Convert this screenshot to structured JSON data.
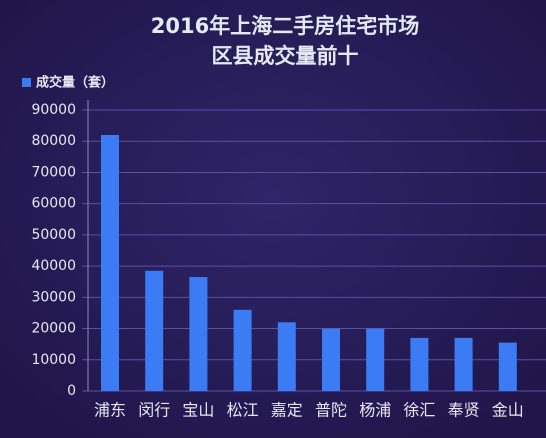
{
  "chart_data": {
    "type": "bar",
    "title": "2016年上海二手房住宅市场",
    "subtitle": "区县成交量前十",
    "categories": [
      "浦东",
      "闵行",
      "宝山",
      "松江",
      "嘉定",
      "普陀",
      "杨浦",
      "徐汇",
      "奉贤",
      "金山"
    ],
    "series": [
      {
        "name": "成交量（套）",
        "color": "#3b7cf5",
        "values": [
          82000,
          38500,
          36500,
          26000,
          22000,
          20000,
          20000,
          17000,
          17000,
          15500
        ]
      }
    ],
    "ylim": [
      0,
      90000
    ],
    "yticks": [
      0,
      10000,
      20000,
      30000,
      40000,
      50000,
      60000,
      70000,
      80000,
      90000
    ],
    "grid": true
  }
}
